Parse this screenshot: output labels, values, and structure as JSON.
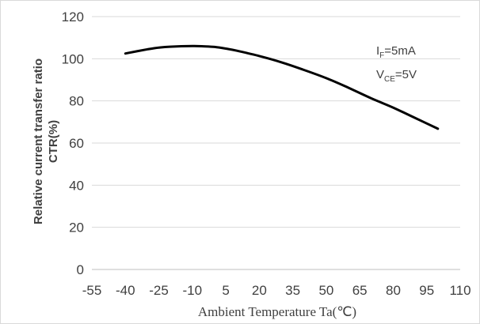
{
  "chart_data": {
    "type": "line",
    "title": "",
    "xlabel": "Ambient Temperature Ta(℃)",
    "ylabel_lines": [
      "Relative current transfer ratio",
      "CTR(%)"
    ],
    "xlim": [
      -55,
      110
    ],
    "ylim": [
      0,
      120
    ],
    "x_ticks": [
      -55,
      -40,
      -25,
      -10,
      5,
      20,
      35,
      50,
      65,
      80,
      95,
      110
    ],
    "y_ticks": [
      0,
      20,
      40,
      60,
      80,
      100,
      120
    ],
    "grid": {
      "y": true,
      "x": false
    },
    "grid_color": "#d9d9d9",
    "line_color": "#000000",
    "series": [
      {
        "x": [
          -40,
          -30,
          -25,
          -20,
          -10,
          -5,
          0,
          5,
          10,
          20,
          30,
          40,
          50,
          60,
          70,
          80,
          90,
          100
        ],
        "y": [
          102.5,
          104.5,
          105.3,
          105.7,
          106,
          105.9,
          105.6,
          104.8,
          103.8,
          101.3,
          98.3,
          94.7,
          90.8,
          86.2,
          81.3,
          76.8,
          71.8,
          66.8
        ]
      }
    ],
    "annotations": [
      {
        "main": "I",
        "sub": "F",
        "rest": "=5mA"
      },
      {
        "main": "V",
        "sub": "CE",
        "rest": "=5V"
      }
    ]
  }
}
